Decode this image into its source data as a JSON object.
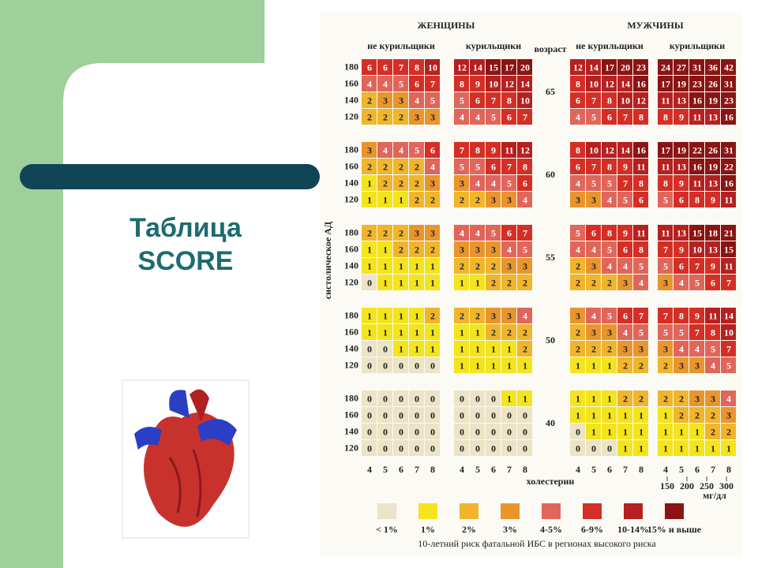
{
  "title": "Таблица SCORE",
  "table": {
    "sex_headers": [
      "ЖЕНЩИНЫ",
      "МУЖЧИНЫ"
    ],
    "smoking_headers": [
      "не курильщики",
      "курильщики",
      "не курильщики",
      "курильщики"
    ],
    "age_header": "возраст",
    "sbp_axis": "систолическое АД",
    "sbp": [
      180,
      160,
      140,
      120
    ],
    "cholesterol_axis": "холестерин",
    "cholesterol": [
      4,
      5,
      6,
      7,
      8
    ],
    "cholesterol_mg": [
      150,
      200,
      250,
      300
    ],
    "mg_unit": "мг/дл",
    "blocks": [
      {
        "age": 65,
        "groups": [
          [
            [
              6,
              6,
              7,
              8,
              10
            ],
            [
              4,
              4,
              5,
              6,
              7
            ],
            [
              2,
              3,
              3,
              4,
              5
            ],
            [
              2,
              2,
              2,
              3,
              3
            ]
          ],
          [
            [
              12,
              14,
              15,
              17,
              20
            ],
            [
              8,
              9,
              10,
              12,
              14
            ],
            [
              5,
              6,
              7,
              8,
              10
            ],
            [
              4,
              4,
              5,
              6,
              7
            ]
          ],
          [
            [
              12,
              14,
              17,
              20,
              23
            ],
            [
              8,
              10,
              12,
              14,
              16
            ],
            [
              6,
              7,
              8,
              10,
              12
            ],
            [
              4,
              5,
              6,
              7,
              8
            ]
          ],
          [
            [
              24,
              27,
              31,
              36,
              42
            ],
            [
              17,
              19,
              23,
              26,
              31
            ],
            [
              11,
              13,
              16,
              19,
              23
            ],
            [
              8,
              9,
              11,
              13,
              16
            ]
          ]
        ]
      },
      {
        "age": 60,
        "groups": [
          [
            [
              3,
              4,
              4,
              5,
              6
            ],
            [
              2,
              2,
              2,
              2,
              4
            ],
            [
              1,
              2,
              2,
              2,
              3
            ],
            [
              1,
              1,
              1,
              2,
              2
            ]
          ],
          [
            [
              7,
              8,
              9,
              11,
              12
            ],
            [
              5,
              5,
              6,
              7,
              8
            ],
            [
              3,
              4,
              4,
              5,
              6
            ],
            [
              2,
              2,
              3,
              3,
              4
            ]
          ],
          [
            [
              8,
              10,
              12,
              14,
              16
            ],
            [
              6,
              7,
              8,
              9,
              11
            ],
            [
              4,
              5,
              5,
              7,
              8
            ],
            [
              3,
              3,
              4,
              5,
              6
            ]
          ],
          [
            [
              17,
              19,
              22,
              26,
              31
            ],
            [
              11,
              13,
              16,
              19,
              22
            ],
            [
              8,
              9,
              11,
              13,
              16
            ],
            [
              5,
              6,
              8,
              9,
              11
            ]
          ]
        ]
      },
      {
        "age": 55,
        "groups": [
          [
            [
              2,
              2,
              2,
              3,
              3
            ],
            [
              1,
              1,
              2,
              2,
              2
            ],
            [
              1,
              1,
              1,
              1,
              1
            ],
            [
              0,
              1,
              1,
              1,
              1
            ]
          ],
          [
            [
              4,
              4,
              5,
              6,
              7
            ],
            [
              3,
              3,
              3,
              4,
              5
            ],
            [
              2,
              2,
              2,
              3,
              3
            ],
            [
              1,
              1,
              2,
              2,
              2
            ]
          ],
          [
            [
              5,
              6,
              8,
              9,
              11
            ],
            [
              4,
              4,
              5,
              6,
              8
            ],
            [
              2,
              3,
              4,
              4,
              5
            ],
            [
              2,
              2,
              2,
              3,
              4
            ]
          ],
          [
            [
              11,
              13,
              15,
              18,
              21
            ],
            [
              7,
              9,
              10,
              13,
              15
            ],
            [
              5,
              6,
              7,
              9,
              11
            ],
            [
              3,
              4,
              5,
              6,
              7
            ]
          ]
        ]
      },
      {
        "age": 50,
        "groups": [
          [
            [
              1,
              1,
              1,
              1,
              2
            ],
            [
              1,
              1,
              1,
              1,
              1
            ],
            [
              0,
              0,
              1,
              1,
              1
            ],
            [
              0,
              0,
              0,
              0,
              0
            ]
          ],
          [
            [
              2,
              2,
              3,
              3,
              4
            ],
            [
              1,
              1,
              2,
              2,
              2
            ],
            [
              1,
              1,
              1,
              1,
              2
            ],
            [
              1,
              1,
              1,
              1,
              1
            ]
          ],
          [
            [
              3,
              4,
              5,
              6,
              7
            ],
            [
              2,
              3,
              3,
              4,
              5
            ],
            [
              2,
              2,
              2,
              3,
              3
            ],
            [
              1,
              1,
              1,
              2,
              2
            ]
          ],
          [
            [
              7,
              8,
              9,
              11,
              14
            ],
            [
              5,
              5,
              7,
              8,
              10
            ],
            [
              3,
              4,
              4,
              5,
              7
            ],
            [
              2,
              3,
              3,
              4,
              5
            ]
          ]
        ]
      },
      {
        "age": 40,
        "groups": [
          [
            [
              0,
              0,
              0,
              0,
              0
            ],
            [
              0,
              0,
              0,
              0,
              0
            ],
            [
              0,
              0,
              0,
              0,
              0
            ],
            [
              0,
              0,
              0,
              0,
              0
            ]
          ],
          [
            [
              0,
              0,
              0,
              1,
              1
            ],
            [
              0,
              0,
              0,
              0,
              0
            ],
            [
              0,
              0,
              0,
              0,
              0
            ],
            [
              0,
              0,
              0,
              0,
              0
            ]
          ],
          [
            [
              1,
              1,
              1,
              2,
              2
            ],
            [
              1,
              1,
              1,
              1,
              1
            ],
            [
              0,
              1,
              1,
              1,
              1
            ],
            [
              0,
              0,
              0,
              1,
              1
            ]
          ],
          [
            [
              2,
              2,
              3,
              3,
              4
            ],
            [
              1,
              2,
              2,
              2,
              3
            ],
            [
              1,
              1,
              1,
              2,
              2
            ],
            [
              1,
              1,
              1,
              1,
              1
            ]
          ]
        ]
      }
    ]
  },
  "legend": {
    "items": [
      {
        "label": "< 1%",
        "color": "#ebe4c6"
      },
      {
        "label": "1%",
        "color": "#f3e41e"
      },
      {
        "label": "2%",
        "color": "#f0b52c"
      },
      {
        "label": "3%",
        "color": "#e9952e"
      },
      {
        "label": "4-5%",
        "color": "#e0665c"
      },
      {
        "label": "6-9%",
        "color": "#d32f26"
      },
      {
        "label": "10-14%",
        "color": "#b52020"
      },
      {
        "label": "15% и выше",
        "color": "#8a1414"
      }
    ],
    "caption": "10-летний риск фатальной ИБС в регионах высокого риска"
  }
}
